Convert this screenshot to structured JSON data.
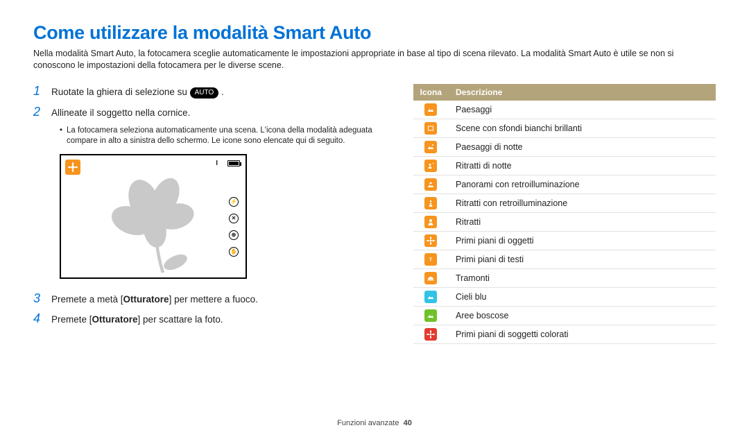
{
  "title": "Come utilizzare la modalità Smart Auto",
  "intro": "Nella modalità Smart Auto, la fotocamera sceglie automaticamente le impostazioni appropriate in base al tipo di scena rilevato. La modalità Smart Auto è utile se non si conoscono le impostazioni della fotocamera per le diverse scene.",
  "steps": {
    "s1": {
      "num": "1",
      "pre": "Ruotate la ghiera di selezione su ",
      "badge": "AUTO",
      "post": " ."
    },
    "s2": {
      "num": "2",
      "text": "Allineate il soggetto nella cornice."
    },
    "s2_sub": "La fotocamera seleziona automaticamente una scena. L'icona della modalità adeguata compare in alto a sinistra dello schermo. Le icone sono elencate qui di seguito.",
    "s3": {
      "num": "3",
      "pre": "Premete a metà [",
      "bold": "Otturatore",
      "post": "] per mettere a fuoco."
    },
    "s4": {
      "num": "4",
      "pre": "Premete [",
      "bold": "Otturatore",
      "post": "] per scattare la foto."
    }
  },
  "table": {
    "head_icon": "Icona",
    "head_desc": "Descrizione",
    "rows": [
      {
        "color": "#f7941d",
        "shape": "landscape",
        "desc": "Paesaggi"
      },
      {
        "color": "#f7941d",
        "shape": "white-bg",
        "desc": "Scene con sfondi bianchi brillanti"
      },
      {
        "color": "#f7941d",
        "shape": "night-land",
        "desc": "Paesaggi di notte"
      },
      {
        "color": "#f7941d",
        "shape": "night-port",
        "desc": "Ritratti di notte"
      },
      {
        "color": "#f7941d",
        "shape": "backlight",
        "desc": "Panorami con retroilluminazione"
      },
      {
        "color": "#f7941d",
        "shape": "back-port",
        "desc": "Ritratti con retroilluminazione"
      },
      {
        "color": "#f7941d",
        "shape": "portrait",
        "desc": "Ritratti"
      },
      {
        "color": "#f7941d",
        "shape": "macro",
        "desc": "Primi piani di oggetti"
      },
      {
        "color": "#f7941d",
        "shape": "macro-text",
        "desc": "Primi piani di testi"
      },
      {
        "color": "#f7941d",
        "shape": "sunset",
        "desc": "Tramonti"
      },
      {
        "color": "#31c3e7",
        "shape": "sky",
        "desc": "Cieli blu"
      },
      {
        "color": "#6fc22a",
        "shape": "forest",
        "desc": "Aree boscose"
      },
      {
        "color": "#e23b2e",
        "shape": "color-macro",
        "desc": "Primi piani di soggetti colorati"
      }
    ]
  },
  "footer": {
    "label": "Funzioni avanzate",
    "page": "40"
  }
}
